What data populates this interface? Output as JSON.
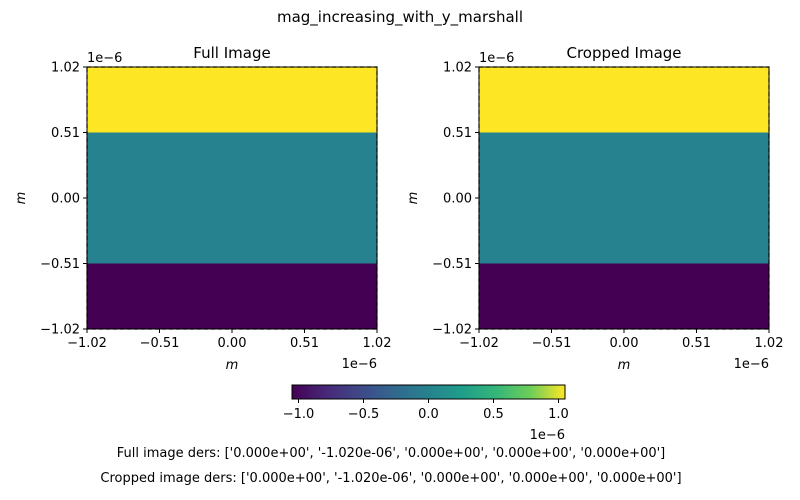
{
  "figure": {
    "suptitle": "mag_increasing_with_y_marshall",
    "colors": {
      "viridis_low": "#440154",
      "viridis_mid": "#21918c",
      "viridis_high": "#fde725"
    }
  },
  "chart_data": [
    {
      "type": "heatmap",
      "title": "Full Image",
      "xlabel": "m",
      "ylabel": "m",
      "xlim": [
        -1.02,
        1.02
      ],
      "ylim": [
        -1.02,
        1.02
      ],
      "x_offset_label": "1e−6",
      "y_offset_label": "1e−6",
      "xticks": [
        "−1.02",
        "−0.51",
        "0.00",
        "0.51",
        "1.02"
      ],
      "yticks": [
        "−1.02",
        "−0.51",
        "0.00",
        "0.51",
        "1.02"
      ],
      "rows": [
        {
          "y_range": [
            -1.02,
            -0.51
          ],
          "value": -1.0
        },
        {
          "y_range": [
            -0.51,
            0.51
          ],
          "value": 0.0
        },
        {
          "y_range": [
            0.51,
            1.02
          ],
          "value": 1.0
        }
      ],
      "crop_box": {
        "x": [
          -1.02,
          1.02
        ],
        "y": [
          -1.02,
          1.02
        ],
        "style": "dashed"
      }
    },
    {
      "type": "heatmap",
      "title": "Cropped Image",
      "xlabel": "m",
      "ylabel": "m",
      "xlim": [
        -1.02,
        1.02
      ],
      "ylim": [
        -1.02,
        1.02
      ],
      "x_offset_label": "1e−6",
      "y_offset_label": "1e−6",
      "xticks": [
        "−1.02",
        "−0.51",
        "0.00",
        "0.51",
        "1.02"
      ],
      "yticks": [
        "−1.02",
        "−0.51",
        "0.00",
        "0.51",
        "1.02"
      ],
      "rows": [
        {
          "y_range": [
            -1.02,
            -0.51
          ],
          "value": -1.0
        },
        {
          "y_range": [
            -0.51,
            0.51
          ],
          "value": 0.0
        },
        {
          "y_range": [
            0.51,
            1.02
          ],
          "value": 1.0
        }
      ],
      "crop_box": {
        "x": [
          -1.02,
          1.02
        ],
        "y": [
          -1.02,
          1.02
        ],
        "style": "dashed"
      }
    }
  ],
  "colorbar": {
    "range": [
      -1.05,
      1.05
    ],
    "ticks": [
      "−1.0",
      "−0.5",
      "0.0",
      "0.5",
      "1.0"
    ],
    "offset_label": "1e−6",
    "colormap": "viridis"
  },
  "captions": {
    "full": "Full image ders: ['0.000e+00', '-1.020e-06', '0.000e+00', '0.000e+00', '0.000e+00']",
    "cropped": "Cropped image ders: ['0.000e+00', '-1.020e-06', '0.000e+00', '0.000e+00', '0.000e+00']"
  }
}
